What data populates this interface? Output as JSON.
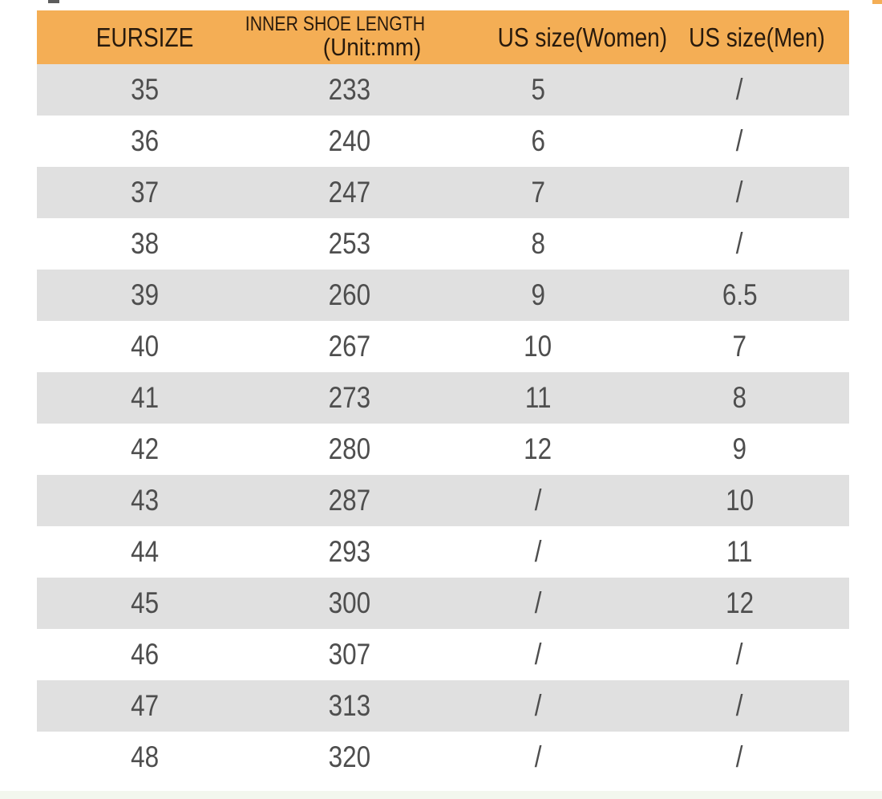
{
  "header": {
    "col1": "EURSIZE",
    "col2_line1": "INNER SHOE LENGTH",
    "col2_line2": "(Unit:mm)",
    "col3": "US size(Women)",
    "col4": "US size(Men)"
  },
  "chart_data": {
    "type": "table",
    "columns": [
      "EURSIZE",
      "INNER SHOE LENGTH (Unit:mm)",
      "US size(Women)",
      "US size(Men)"
    ],
    "rows": [
      [
        "35",
        "233",
        "5",
        "/"
      ],
      [
        "36",
        "240",
        "6",
        "/"
      ],
      [
        "37",
        "247",
        "7",
        "/"
      ],
      [
        "38",
        "253",
        "8",
        "/"
      ],
      [
        "39",
        "260",
        "9",
        "6.5"
      ],
      [
        "40",
        "267",
        "10",
        "7"
      ],
      [
        "41",
        "273",
        "11",
        "8"
      ],
      [
        "42",
        "280",
        "12",
        "9"
      ],
      [
        "43",
        "287",
        "/",
        "10"
      ],
      [
        "44",
        "293",
        "/",
        "11"
      ],
      [
        "45",
        "300",
        "/",
        "12"
      ],
      [
        "46",
        "307",
        "/",
        "/"
      ],
      [
        "47",
        "313",
        "/",
        "/"
      ],
      [
        "48",
        "320",
        "/",
        "/"
      ]
    ],
    "layout": {
      "striped": true,
      "stripe_pattern": "alternating white / light-gray starting white",
      "header_position": "top"
    }
  },
  "colors": {
    "header_bg": "#F4AE55",
    "header_text": "#281A0D",
    "row_alt_bg": "#E0E0E0",
    "body_text": "#4E4E4E",
    "footer_tint": "#F3F7EE"
  }
}
